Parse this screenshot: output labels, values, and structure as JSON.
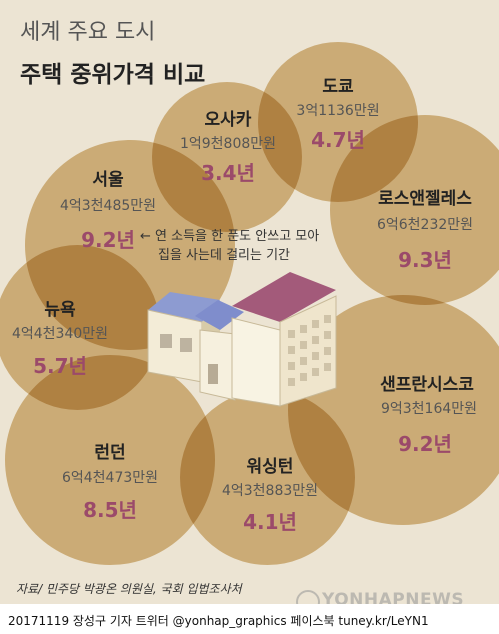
{
  "title_line1": "세계 주요 도시",
  "title_line2": "주택 중위가격 비교",
  "cities": [
    {
      "name": "서울",
      "price": "4억3천485만원",
      "years": "9.2년"
    },
    {
      "name": "오사카",
      "price": "1억9천808만원",
      "years": "3.4년"
    },
    {
      "name": "도쿄",
      "price": "3억1136만원",
      "years": "4.7년"
    },
    {
      "name": "로스앤젤레스",
      "price": "6억6천232만원",
      "years": "9.3년"
    },
    {
      "name": "뉴욕",
      "price": "4억4천340만원",
      "years": "5.7년"
    },
    {
      "name": "샌프란시스코",
      "price": "9억3천164만원",
      "years": "9.2년"
    },
    {
      "name": "런던",
      "price": "6억4천473만원",
      "years": "8.5년"
    },
    {
      "name": "워싱턴",
      "price": "4억3천883만원",
      "years": "4.1년"
    }
  ],
  "note_line1": "← 연 소득을 한 푼도 안쓰고 모아",
  "note_line2": "집을 사는데 걸리는 기간",
  "source": "자료/ 민주당 박광온 의원실, 국회 입법조사처",
  "footer": "20171119  장성구 기자  트위터 @yonhap_graphics  페이스북 tuney.kr/LeYN1",
  "watermark": "YONHAPNEWS",
  "colors": {
    "circle": "#dcc08f",
    "background": "#ece4d3",
    "years": "#9b4a6a"
  }
}
